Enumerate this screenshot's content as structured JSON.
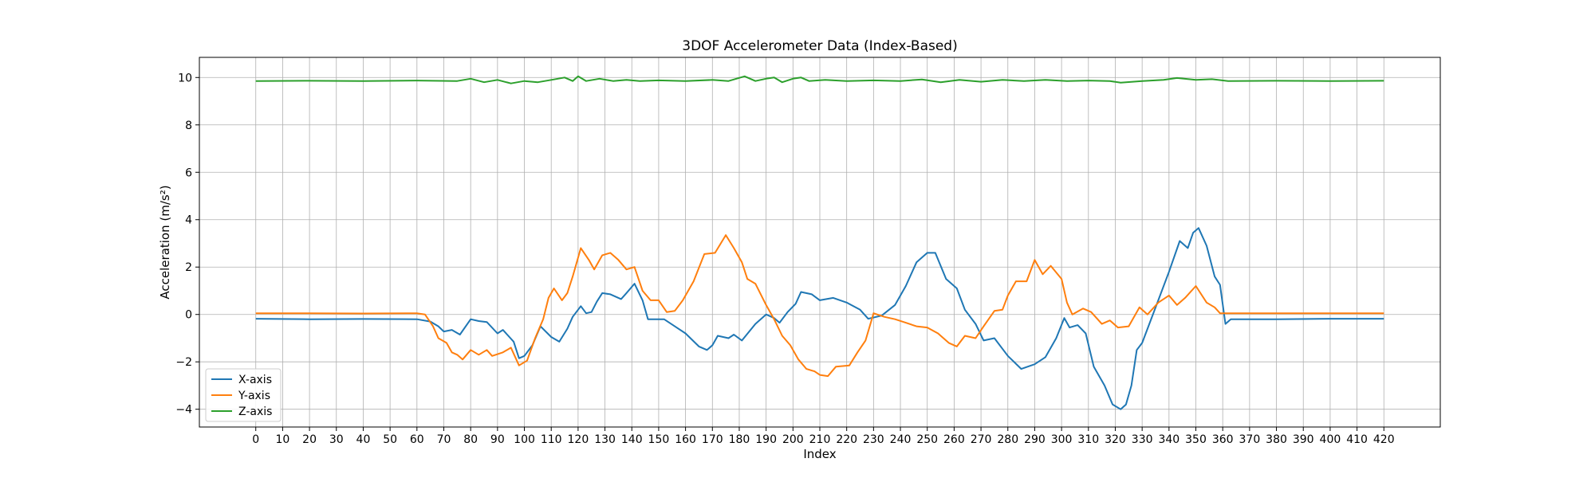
{
  "chart_data": {
    "type": "line",
    "title": "3DOF Accelerometer Data (Index-Based)",
    "xlabel": "Index",
    "ylabel": "Acceleration (m/s²)",
    "xlim": [
      -21,
      441
    ],
    "ylim": [
      -4.75,
      10.85
    ],
    "xticks": [
      0,
      10,
      20,
      30,
      40,
      50,
      60,
      70,
      80,
      90,
      100,
      110,
      120,
      130,
      140,
      150,
      160,
      170,
      180,
      190,
      200,
      210,
      220,
      230,
      240,
      250,
      260,
      270,
      280,
      290,
      300,
      310,
      320,
      330,
      340,
      350,
      360,
      370,
      380,
      390,
      400,
      410,
      420
    ],
    "yticks": [
      -4,
      -2,
      0,
      2,
      4,
      6,
      8,
      10
    ],
    "grid": true,
    "legend_position": "bottom-left",
    "series": [
      {
        "name": "X-axis",
        "color": "#1f77b4",
        "points": [
          [
            0,
            -0.18
          ],
          [
            20,
            -0.2
          ],
          [
            40,
            -0.19
          ],
          [
            60,
            -0.2
          ],
          [
            65,
            -0.3
          ],
          [
            68,
            -0.5
          ],
          [
            70,
            -0.72
          ],
          [
            73,
            -0.65
          ],
          [
            76,
            -0.85
          ],
          [
            80,
            -0.2
          ],
          [
            83,
            -0.28
          ],
          [
            86,
            -0.32
          ],
          [
            90,
            -0.8
          ],
          [
            92,
            -0.65
          ],
          [
            96,
            -1.15
          ],
          [
            98,
            -1.85
          ],
          [
            100,
            -1.75
          ],
          [
            103,
            -1.3
          ],
          [
            106,
            -0.5
          ],
          [
            110,
            -0.95
          ],
          [
            113,
            -1.15
          ],
          [
            116,
            -0.6
          ],
          [
            118,
            -0.1
          ],
          [
            121,
            0.35
          ],
          [
            123,
            0.05
          ],
          [
            125,
            0.1
          ],
          [
            127,
            0.55
          ],
          [
            129,
            0.9
          ],
          [
            132,
            0.85
          ],
          [
            136,
            0.65
          ],
          [
            138,
            0.9
          ],
          [
            141,
            1.3
          ],
          [
            144,
            0.6
          ],
          [
            146,
            -0.2
          ],
          [
            150,
            -0.2
          ],
          [
            152,
            -0.2
          ],
          [
            156,
            -0.5
          ],
          [
            160,
            -0.8
          ],
          [
            165,
            -1.35
          ],
          [
            168,
            -1.5
          ],
          [
            170,
            -1.3
          ],
          [
            172,
            -0.9
          ],
          [
            176,
            -1.0
          ],
          [
            178,
            -0.85
          ],
          [
            181,
            -1.1
          ],
          [
            186,
            -0.4
          ],
          [
            190,
            0.0
          ],
          [
            193,
            -0.15
          ],
          [
            195,
            -0.35
          ],
          [
            198,
            0.1
          ],
          [
            201,
            0.45
          ],
          [
            203,
            0.95
          ],
          [
            207,
            0.85
          ],
          [
            210,
            0.6
          ],
          [
            215,
            0.7
          ],
          [
            220,
            0.5
          ],
          [
            225,
            0.2
          ],
          [
            228,
            -0.18
          ],
          [
            233,
            -0.05
          ],
          [
            238,
            0.4
          ],
          [
            242,
            1.2
          ],
          [
            246,
            2.2
          ],
          [
            250,
            2.6
          ],
          [
            253,
            2.6
          ],
          [
            257,
            1.5
          ],
          [
            261,
            1.1
          ],
          [
            264,
            0.2
          ],
          [
            268,
            -0.4
          ],
          [
            271,
            -1.1
          ],
          [
            275,
            -1.0
          ],
          [
            280,
            -1.75
          ],
          [
            285,
            -2.3
          ],
          [
            290,
            -2.1
          ],
          [
            294,
            -1.8
          ],
          [
            298,
            -1.0
          ],
          [
            301,
            -0.15
          ],
          [
            303,
            -0.55
          ],
          [
            306,
            -0.45
          ],
          [
            309,
            -0.8
          ],
          [
            312,
            -2.2
          ],
          [
            316,
            -3.0
          ],
          [
            319,
            -3.8
          ],
          [
            322,
            -4.0
          ],
          [
            324,
            -3.8
          ],
          [
            326,
            -3.0
          ],
          [
            328,
            -1.5
          ],
          [
            330,
            -1.2
          ],
          [
            333,
            -0.3
          ],
          [
            336,
            0.6
          ],
          [
            340,
            1.8
          ],
          [
            344,
            3.1
          ],
          [
            347,
            2.8
          ],
          [
            349,
            3.45
          ],
          [
            351,
            3.65
          ],
          [
            354,
            2.9
          ],
          [
            357,
            1.6
          ],
          [
            359,
            1.25
          ],
          [
            361,
            -0.4
          ],
          [
            363,
            -0.2
          ],
          [
            380,
            -0.2
          ],
          [
            400,
            -0.18
          ],
          [
            420,
            -0.18
          ]
        ]
      },
      {
        "name": "Y-axis",
        "color": "#ff7f0e",
        "points": [
          [
            0,
            0.05
          ],
          [
            20,
            0.05
          ],
          [
            40,
            0.04
          ],
          [
            60,
            0.05
          ],
          [
            63,
            0.0
          ],
          [
            66,
            -0.5
          ],
          [
            68,
            -1.0
          ],
          [
            71,
            -1.2
          ],
          [
            73,
            -1.6
          ],
          [
            75,
            -1.7
          ],
          [
            77,
            -1.9
          ],
          [
            80,
            -1.5
          ],
          [
            83,
            -1.7
          ],
          [
            86,
            -1.5
          ],
          [
            88,
            -1.75
          ],
          [
            92,
            -1.6
          ],
          [
            95,
            -1.4
          ],
          [
            98,
            -2.15
          ],
          [
            101,
            -1.95
          ],
          [
            104,
            -1.0
          ],
          [
            107,
            -0.2
          ],
          [
            109,
            0.7
          ],
          [
            111,
            1.1
          ],
          [
            114,
            0.6
          ],
          [
            116,
            0.9
          ],
          [
            118,
            1.6
          ],
          [
            121,
            2.8
          ],
          [
            124,
            2.3
          ],
          [
            126,
            1.9
          ],
          [
            129,
            2.5
          ],
          [
            132,
            2.6
          ],
          [
            135,
            2.3
          ],
          [
            138,
            1.9
          ],
          [
            141,
            2.0
          ],
          [
            144,
            1.0
          ],
          [
            147,
            0.6
          ],
          [
            150,
            0.6
          ],
          [
            153,
            0.1
          ],
          [
            156,
            0.15
          ],
          [
            159,
            0.6
          ],
          [
            163,
            1.4
          ],
          [
            167,
            2.55
          ],
          [
            171,
            2.6
          ],
          [
            175,
            3.35
          ],
          [
            178,
            2.8
          ],
          [
            181,
            2.2
          ],
          [
            183,
            1.5
          ],
          [
            186,
            1.3
          ],
          [
            190,
            0.4
          ],
          [
            193,
            -0.2
          ],
          [
            196,
            -0.9
          ],
          [
            199,
            -1.3
          ],
          [
            202,
            -1.9
          ],
          [
            205,
            -2.3
          ],
          [
            208,
            -2.4
          ],
          [
            210,
            -2.55
          ],
          [
            213,
            -2.6
          ],
          [
            216,
            -2.2
          ],
          [
            221,
            -2.15
          ],
          [
            224,
            -1.6
          ],
          [
            227,
            -1.1
          ],
          [
            230,
            0.05
          ],
          [
            234,
            -0.1
          ],
          [
            238,
            -0.2
          ],
          [
            242,
            -0.35
          ],
          [
            246,
            -0.5
          ],
          [
            250,
            -0.55
          ],
          [
            254,
            -0.8
          ],
          [
            258,
            -1.2
          ],
          [
            261,
            -1.35
          ],
          [
            264,
            -0.9
          ],
          [
            268,
            -1.0
          ],
          [
            271,
            -0.5
          ],
          [
            275,
            0.15
          ],
          [
            278,
            0.2
          ],
          [
            280,
            0.8
          ],
          [
            283,
            1.4
          ],
          [
            287,
            1.4
          ],
          [
            290,
            2.3
          ],
          [
            293,
            1.7
          ],
          [
            296,
            2.05
          ],
          [
            300,
            1.5
          ],
          [
            302,
            0.5
          ],
          [
            304,
            0.0
          ],
          [
            308,
            0.25
          ],
          [
            311,
            0.1
          ],
          [
            315,
            -0.4
          ],
          [
            318,
            -0.25
          ],
          [
            321,
            -0.55
          ],
          [
            325,
            -0.5
          ],
          [
            329,
            0.3
          ],
          [
            332,
            0.0
          ],
          [
            336,
            0.5
          ],
          [
            340,
            0.8
          ],
          [
            343,
            0.4
          ],
          [
            346,
            0.7
          ],
          [
            350,
            1.2
          ],
          [
            354,
            0.5
          ],
          [
            357,
            0.3
          ],
          [
            359,
            0.05
          ],
          [
            380,
            0.05
          ],
          [
            400,
            0.05
          ],
          [
            420,
            0.05
          ]
        ]
      },
      {
        "name": "Z-axis",
        "color": "#2ca02c",
        "points": [
          [
            0,
            9.85
          ],
          [
            20,
            9.86
          ],
          [
            40,
            9.85
          ],
          [
            60,
            9.87
          ],
          [
            75,
            9.85
          ],
          [
            80,
            9.95
          ],
          [
            85,
            9.8
          ],
          [
            90,
            9.9
          ],
          [
            95,
            9.75
          ],
          [
            100,
            9.85
          ],
          [
            105,
            9.8
          ],
          [
            110,
            9.9
          ],
          [
            115,
            10.0
          ],
          [
            118,
            9.85
          ],
          [
            120,
            10.05
          ],
          [
            123,
            9.85
          ],
          [
            128,
            9.95
          ],
          [
            133,
            9.85
          ],
          [
            138,
            9.9
          ],
          [
            143,
            9.85
          ],
          [
            150,
            9.88
          ],
          [
            160,
            9.85
          ],
          [
            170,
            9.9
          ],
          [
            176,
            9.85
          ],
          [
            182,
            10.05
          ],
          [
            186,
            9.85
          ],
          [
            190,
            9.95
          ],
          [
            193,
            10.0
          ],
          [
            196,
            9.8
          ],
          [
            200,
            9.95
          ],
          [
            203,
            10.0
          ],
          [
            206,
            9.85
          ],
          [
            212,
            9.9
          ],
          [
            220,
            9.85
          ],
          [
            230,
            9.88
          ],
          [
            240,
            9.85
          ],
          [
            248,
            9.92
          ],
          [
            255,
            9.8
          ],
          [
            262,
            9.9
          ],
          [
            270,
            9.82
          ],
          [
            278,
            9.9
          ],
          [
            286,
            9.85
          ],
          [
            294,
            9.9
          ],
          [
            302,
            9.85
          ],
          [
            310,
            9.87
          ],
          [
            318,
            9.85
          ],
          [
            322,
            9.78
          ],
          [
            330,
            9.85
          ],
          [
            338,
            9.9
          ],
          [
            343,
            9.98
          ],
          [
            350,
            9.9
          ],
          [
            356,
            9.93
          ],
          [
            362,
            9.85
          ],
          [
            380,
            9.86
          ],
          [
            400,
            9.85
          ],
          [
            420,
            9.86
          ]
        ]
      }
    ]
  }
}
